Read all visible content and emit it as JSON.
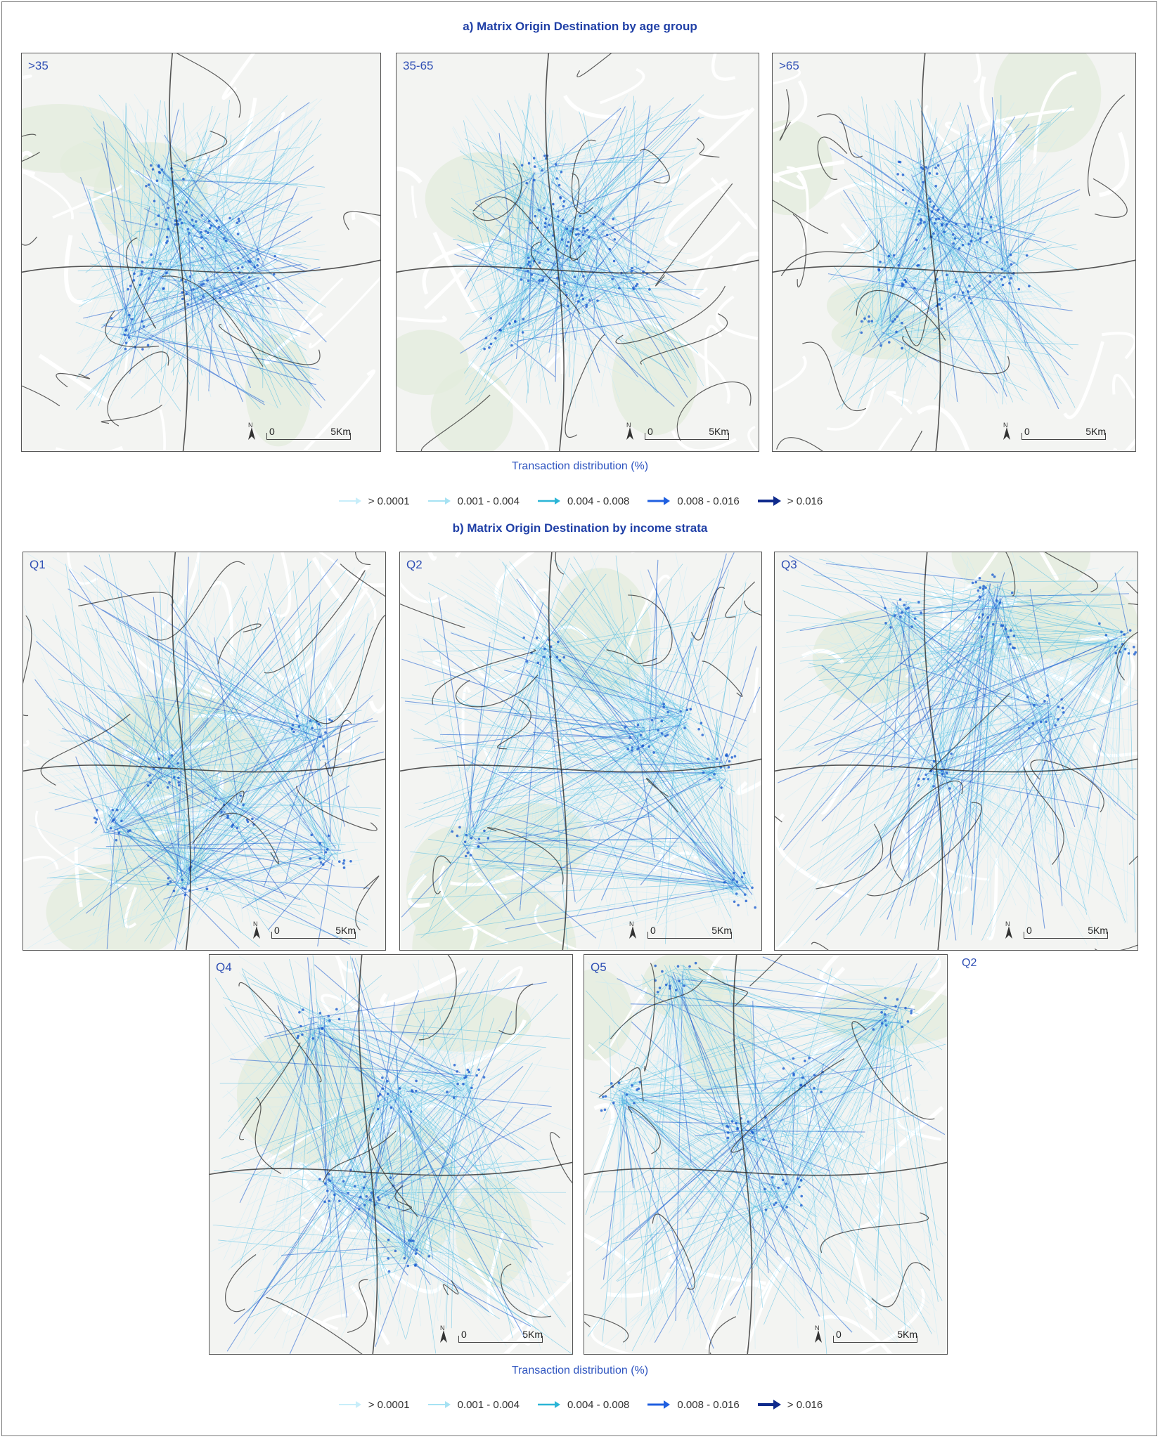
{
  "section_a": {
    "title": "a) Matrix Origin Destination by age group",
    "panels": [
      {
        "label": ">35"
      },
      {
        "label": "35-65"
      },
      {
        "label": ">65"
      }
    ]
  },
  "section_b": {
    "title": "b) Matrix Origin Destination by income strata",
    "panels": [
      {
        "label": "Q1"
      },
      {
        "label": "Q2"
      },
      {
        "label": "Q3"
      },
      {
        "label": "Q4"
      },
      {
        "label": "Q5"
      }
    ],
    "stray_label": "Q2"
  },
  "scalebar": {
    "zero": "0",
    "distance": "5Km",
    "north": "N"
  },
  "legend": {
    "title": "Transaction distribution (%)",
    "items": [
      {
        "label": "> 0.0001",
        "color": "#c8eefa"
      },
      {
        "label": "0.001 - 0.004",
        "color": "#a6e2f3"
      },
      {
        "label": "0.004 - 0.008",
        "color": "#2bb5d6"
      },
      {
        "label": "0.008 - 0.016",
        "color": "#1f5fe0"
      },
      {
        "label": "> 0.016",
        "color": "#0f2a8c"
      }
    ]
  },
  "colors": {
    "flow_light": "#bfe9f7",
    "flow_mid": "#41b6e0",
    "flow_dark": "#1a5dd0",
    "road": "#2a2a2a",
    "park": "#e3ecdd"
  }
}
